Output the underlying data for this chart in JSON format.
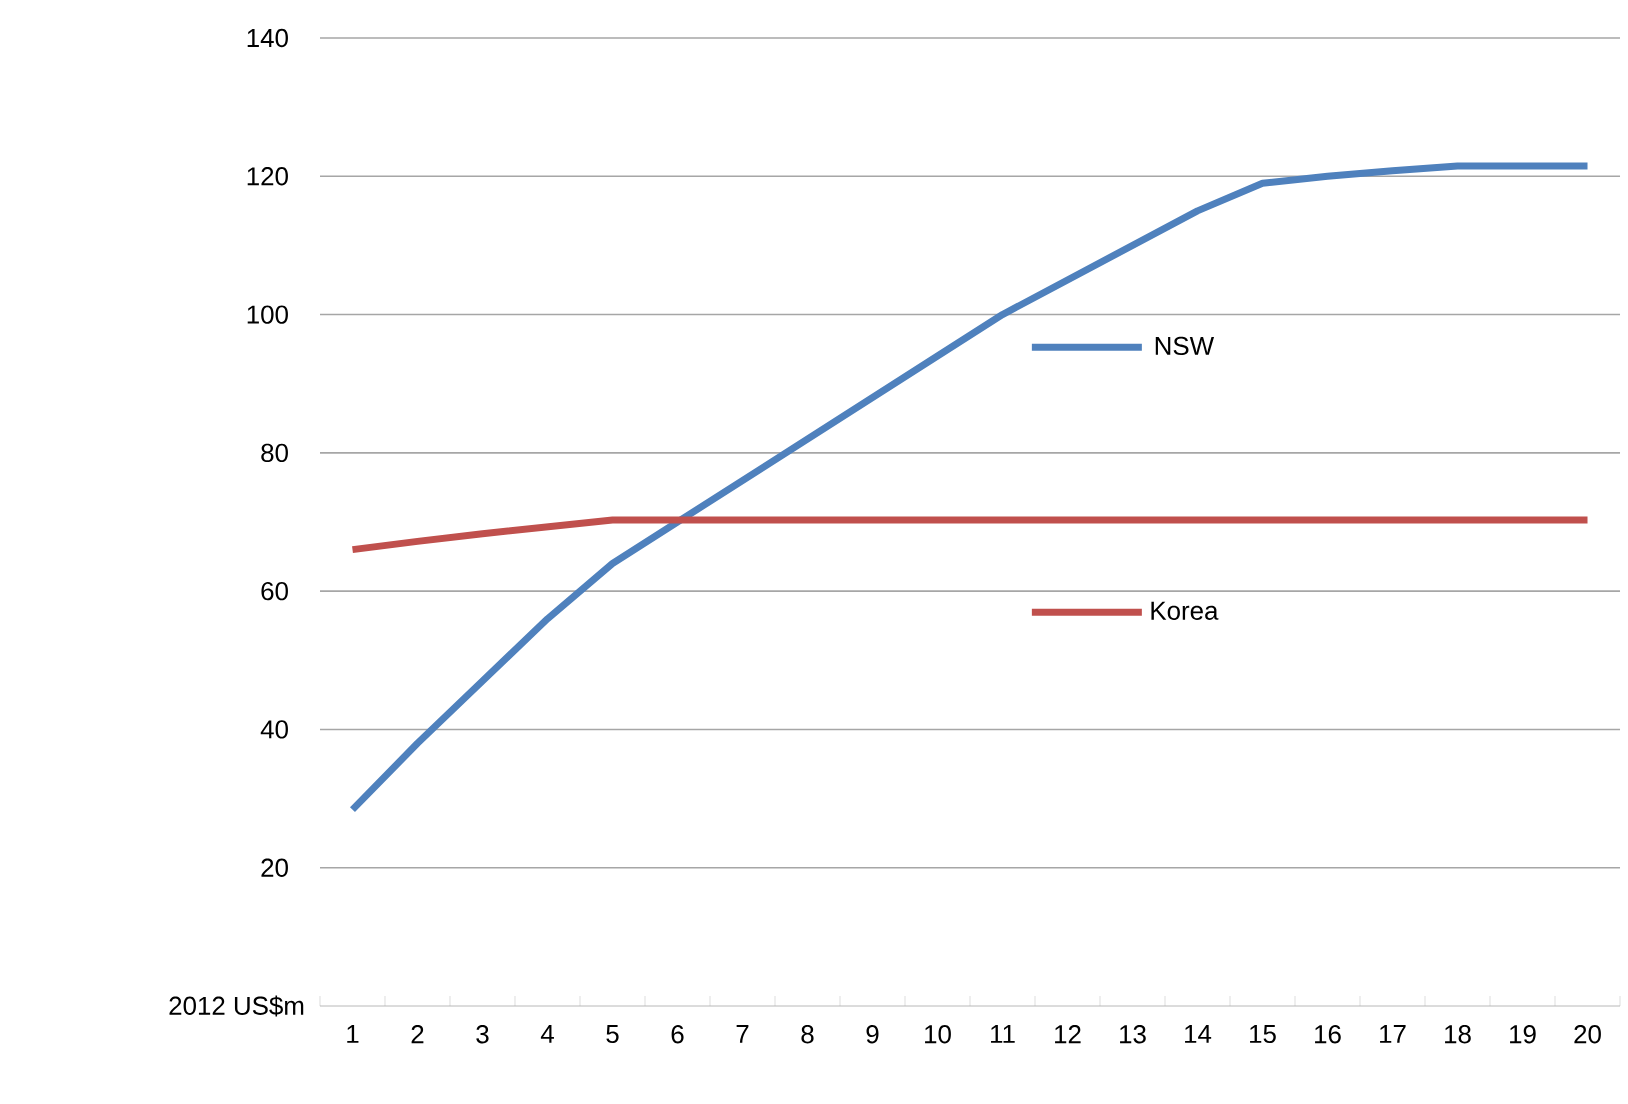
{
  "chart_data": {
    "type": "line",
    "categories": [
      "1",
      "2",
      "3",
      "4",
      "5",
      "6",
      "7",
      "8",
      "9",
      "10",
      "11",
      "12",
      "13",
      "14",
      "15",
      "16",
      "17",
      "18",
      "19",
      "20"
    ],
    "series": [
      {
        "name": "NSW",
        "color": "#4f81bd",
        "values": [
          28.4,
          38,
          47,
          56,
          64,
          70,
          76,
          82,
          88,
          94,
          100,
          105,
          110,
          115,
          119,
          120,
          120.8,
          121.5,
          121.5,
          121.5
        ]
      },
      {
        "name": "Korea",
        "color": "#c0504d",
        "values": [
          66,
          67.2,
          68.3,
          69.3,
          70.3,
          70.3,
          70.3,
          70.3,
          70.3,
          70.3,
          70.3,
          70.3,
          70.3,
          70.3,
          70.3,
          70.3,
          70.3,
          70.3,
          70.3,
          70.3
        ]
      }
    ],
    "ylim": [
      0,
      140
    ],
    "yticks": [
      20,
      40,
      60,
      80,
      100,
      120,
      140
    ],
    "ylabel": "2012 US$m",
    "grid": "y",
    "legend": "right",
    "marker": "none",
    "line_style": "solid"
  }
}
